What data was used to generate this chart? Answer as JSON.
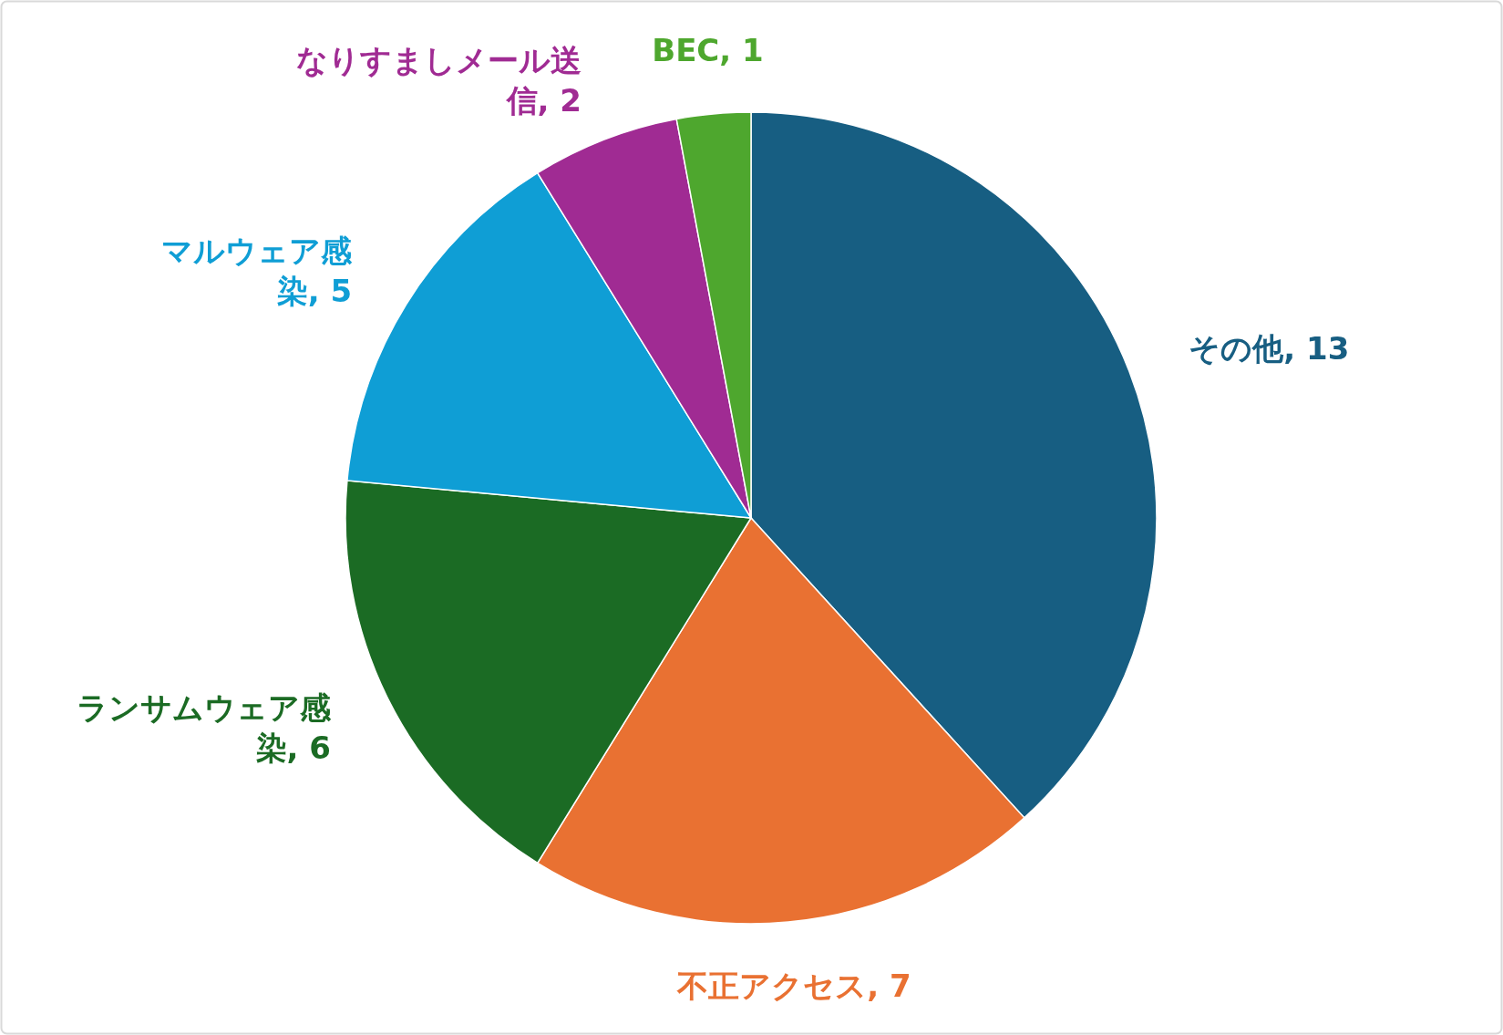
{
  "chart_data": {
    "type": "pie",
    "categories": [
      "その他",
      "不正アクセス",
      "ランサムウェア感染",
      "マルウェア感染",
      "なりすましメール送信",
      "BEC"
    ],
    "values": [
      13,
      7,
      6,
      5,
      2,
      1
    ],
    "colors": [
      "#175e82",
      "#e97132",
      "#1b6b24",
      "#0f9ed5",
      "#a02b93",
      "#4ea72e"
    ],
    "value_labels": [
      ", 13",
      ", 7",
      ", 6",
      ", 5",
      ", 2",
      ", 1"
    ]
  }
}
